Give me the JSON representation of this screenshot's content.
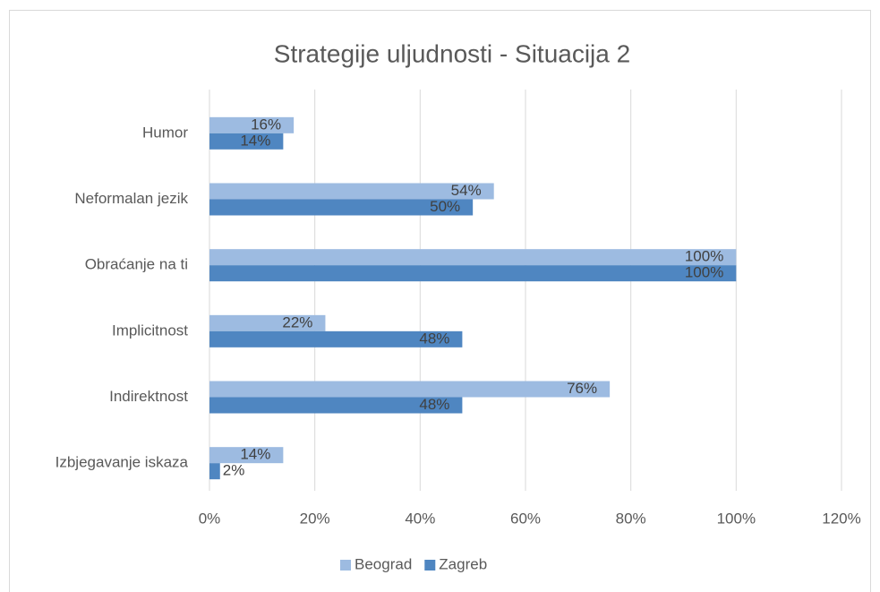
{
  "chart_data": {
    "type": "hbar",
    "title": "Strategije uljudnosti - Situacija 2",
    "categories": [
      "Humor",
      "Neformalan jezik",
      "Obraćanje na ti",
      "Implicitnost",
      "Indirektnost",
      "Izbjegavanje iskaza"
    ],
    "series": [
      {
        "name": "Beograd",
        "color": "#9dbbe1",
        "values": [
          16,
          54,
          100,
          22,
          76,
          14
        ],
        "value_labels": [
          "16%",
          "54%",
          "100%",
          "22%",
          "76%",
          "14%"
        ]
      },
      {
        "name": "Zagreb",
        "color": "#4f86c1",
        "values": [
          14,
          50,
          100,
          48,
          48,
          2
        ],
        "value_labels": [
          "14%",
          "50%",
          "100%",
          "48%",
          "48%",
          "2%"
        ]
      }
    ],
    "xlim": [
      0,
      120
    ],
    "xticks": [
      {
        "value": 0,
        "label": "0%"
      },
      {
        "value": 20,
        "label": "20%"
      },
      {
        "value": 40,
        "label": "40%"
      },
      {
        "value": 60,
        "label": "60%"
      },
      {
        "value": 80,
        "label": "80%"
      },
      {
        "value": 100,
        "label": "100%"
      },
      {
        "value": 120,
        "label": "120%"
      }
    ],
    "grid": true,
    "legend": "bottom"
  }
}
